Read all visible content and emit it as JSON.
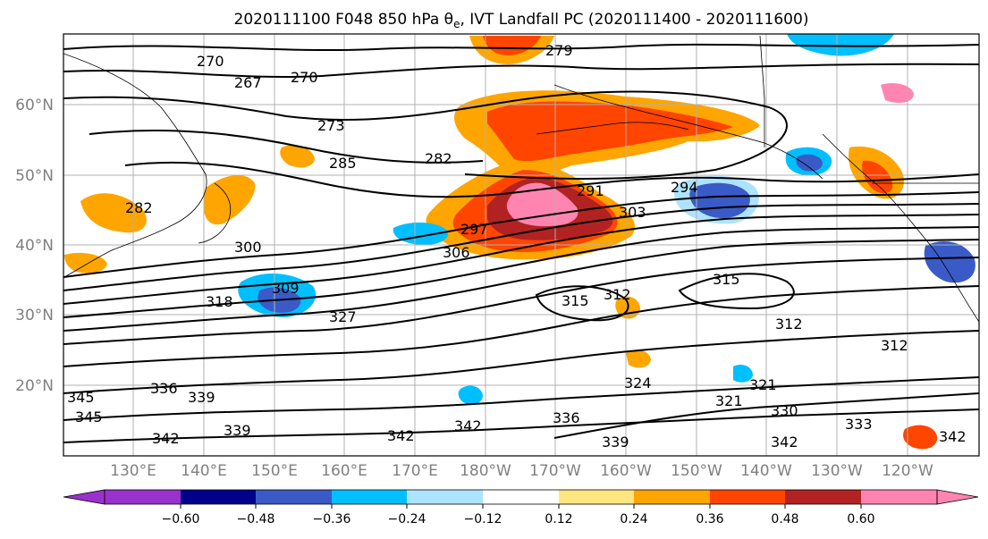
{
  "title": {
    "text": "2020111100 F048 850 hPa θ",
    "subscript": "e",
    "suffix": ", IVT Landfall PC (2020111400 - 2020111600)"
  },
  "map": {
    "projection": "lat-lon",
    "lon_range": [
      "121°E",
      "115°W"
    ],
    "lat_range": [
      10,
      70
    ],
    "gridlines": true,
    "coastlines": true,
    "latitude_labels": [
      "60°N",
      "50°N",
      "40°N",
      "30°N",
      "20°N"
    ],
    "longitude_labels": [
      "130°E",
      "140°E",
      "150°E",
      "160°E",
      "170°E",
      "180°W",
      "170°W",
      "160°W",
      "150°W",
      "140°W",
      "130°W",
      "120°W"
    ]
  },
  "contours": {
    "variable": "850 hPa theta-e (K)",
    "color": "#000000",
    "labels": [
      "279",
      "270",
      "267",
      "270",
      "273",
      "282",
      "285",
      "291",
      "294",
      "303",
      "297",
      "306",
      "300",
      "309",
      "318",
      "327",
      "315",
      "312",
      "315",
      "312",
      "282",
      "324",
      "321",
      "321",
      "330",
      "333",
      "336",
      "339",
      "342",
      "342",
      "342",
      "342",
      "336",
      "339",
      "345",
      "345",
      "342",
      "339",
      "312"
    ]
  },
  "shading": {
    "variable": "IVT Landfall PC",
    "colorbar": {
      "extend": "both",
      "ticks": [
        "−0.60",
        "−0.48",
        "−0.36",
        "−0.24",
        "−0.12",
        "0.12",
        "0.24",
        "0.36",
        "0.48",
        "0.60"
      ],
      "colors": [
        "#9932cc",
        "#00008b",
        "#3a5bc7",
        "#00bfff",
        "#aee3ff",
        "#ffffff",
        "#ffe680",
        "#ffa500",
        "#ff4500",
        "#b22222",
        "#ff85b0"
      ]
    }
  }
}
